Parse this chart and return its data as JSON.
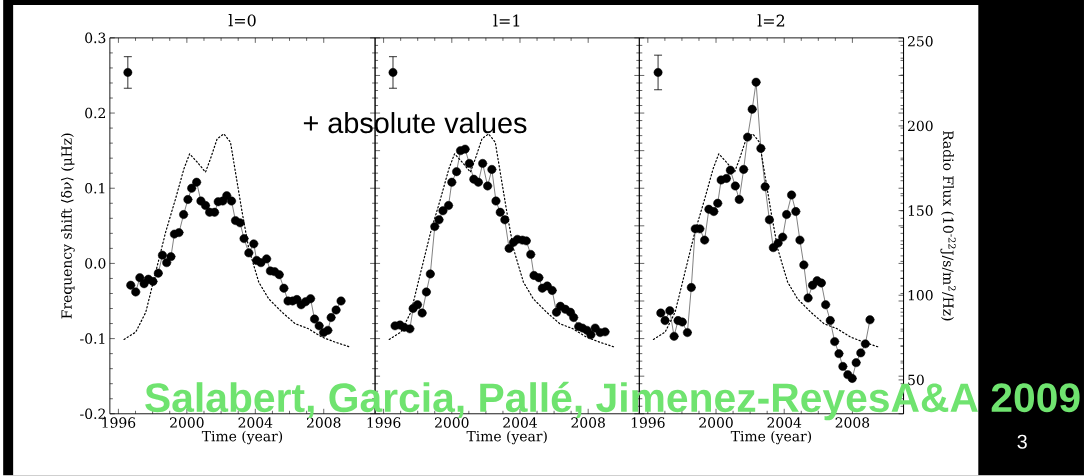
{
  "chart_data": [
    {
      "type": "line",
      "title": "l=0",
      "xlabel": "Time (year)",
      "ylabel": "Frequency shift ⟨δν⟩ (μHz)",
      "xlim": [
        1995.5,
        2011
      ],
      "xticks": [
        1996,
        2000,
        2004,
        2008
      ],
      "ylim": [
        -0.2,
        0.3
      ],
      "yticks": [
        -0.2,
        -0.1,
        {
          "value": 0,
          "label": "0.0"
        },
        0.1,
        0.2,
        0.3
      ],
      "y2lim": [
        30,
        252
      ],
      "tick_labels": [
        "x",
        "y"
      ],
      "annotations": [
        "+ absolute values",
        "Salabert, Garcia, Pallé, Jimenez-ReyesA&A 2009",
        "3"
      ],
      "series": [
        {
          "type": "line",
          "marker": "circle",
          "color": "#000000",
          "x": [
            1996.72,
            1997.01,
            1997.25,
            1997.5,
            1997.75,
            1998.02,
            1998.33,
            1998.57,
            1998.82,
            1999.07,
            1999.27,
            1999.54,
            1999.81,
            2000.06,
            2000.28,
            2000.57,
            2000.82,
            2001.09,
            2001.33,
            2001.62,
            2001.83,
            2002.1,
            2002.33,
            2002.61,
            2002.84,
            2003.11,
            2003.34,
            2003.62,
            2003.91,
            2004.08,
            2004.33,
            2004.66,
            2004.88,
            2005.13,
            2005.4,
            2005.67,
            2005.91,
            2006.18,
            2006.43,
            2006.68,
            2006.94,
            2007.23,
            2007.46,
            2007.73,
            2007.99,
            2008.24,
            2008.43,
            2008.72,
            2009.01
          ],
          "values": [
            -0.029,
            -0.038,
            -0.019,
            -0.027,
            -0.021,
            -0.024,
            -0.013,
            0.011,
            0.001,
            0.009,
            0.039,
            0.041,
            0.065,
            0.085,
            0.1,
            0.108,
            0.083,
            0.077,
            0.068,
            0.068,
            0.082,
            0.083,
            0.09,
            0.083,
            0.057,
            0.054,
            0.033,
            0.014,
            0.026,
            0.004,
            0.001,
            0.006,
            -0.01,
            -0.011,
            -0.015,
            -0.033,
            -0.05,
            -0.05,
            -0.048,
            -0.055,
            -0.051,
            -0.047,
            -0.074,
            -0.083,
            -0.092,
            -0.089,
            -0.072,
            -0.062,
            -0.05
          ]
        },
        {
          "type": "scatter",
          "marker": "circle",
          "color": "#000000",
          "x": [
            1996.55
          ],
          "values": [
            0.254
          ],
          "errors": [
            0.021
          ]
        },
        {
          "type": "line",
          "axis": "y2",
          "marker": "none",
          "line_style": "dotted",
          "color": "#000000",
          "x": [
            1996.33,
            1997.01,
            1997.6,
            1998.18,
            1998.76,
            1999.34,
            1999.83,
            2000.16,
            2000.61,
            2001.09,
            2001.38,
            2001.77,
            2002.16,
            2002.55,
            2002.84,
            2003.23,
            2003.62,
            2004.2,
            2004.78,
            2005.56,
            2006.33,
            2007.11,
            2007.89,
            2008.67,
            2009.54
          ],
          "values": [
            73.9,
            78.2,
            90.0,
            113.7,
            137.3,
            157.0,
            174.7,
            183.5,
            178.6,
            172.7,
            180.6,
            192.4,
            195.3,
            190.4,
            172.7,
            149.1,
            127.4,
            107.8,
            97.9,
            90.0,
            83.2,
            80.2,
            75.3,
            72.3,
            69.4
          ]
        }
      ]
    },
    {
      "type": "line",
      "title": "l=1",
      "xlabel": "Time (year)",
      "xlim": [
        1995.5,
        2011
      ],
      "xticks": [
        1996,
        2000,
        2004,
        2008
      ],
      "ylim": [
        -0.2,
        0.3
      ],
      "y2lim": [
        30,
        252
      ],
      "tick_labels": "x",
      "series": [
        {
          "type": "line",
          "marker": "circle",
          "color": "#000000",
          "x": [
            1996.67,
            1996.96,
            1997.21,
            1997.54,
            1997.73,
            1997.99,
            1998.26,
            1998.51,
            1998.74,
            1999.0,
            1999.25,
            1999.48,
            1999.81,
            2000.0,
            2000.28,
            2000.51,
            2000.78,
            2001.03,
            2001.29,
            2001.56,
            2001.81,
            2002.1,
            2002.35,
            2002.59,
            2002.84,
            2003.11,
            2003.36,
            2003.62,
            2003.85,
            2004.14,
            2004.37,
            2004.63,
            2004.82,
            2005.11,
            2005.31,
            2005.6,
            2005.89,
            2006.14,
            2006.37,
            2006.66,
            2006.96,
            2007.15,
            2007.44,
            2007.67,
            2007.93,
            2008.16,
            2008.41,
            2008.7,
            2008.99
          ],
          "values": [
            -0.083,
            -0.082,
            -0.085,
            -0.087,
            -0.06,
            -0.055,
            -0.066,
            -0.038,
            -0.014,
            0.049,
            0.058,
            0.07,
            0.077,
            0.108,
            0.122,
            0.15,
            0.152,
            0.133,
            0.112,
            0.108,
            0.133,
            0.103,
            0.125,
            0.083,
            0.068,
            0.058,
            0.02,
            0.028,
            0.032,
            0.031,
            0.03,
            0.012,
            -0.016,
            -0.019,
            -0.033,
            -0.03,
            -0.036,
            -0.065,
            -0.057,
            -0.061,
            -0.065,
            -0.072,
            -0.084,
            -0.086,
            -0.089,
            -0.095,
            -0.086,
            -0.092,
            -0.091
          ]
        },
        {
          "type": "scatter",
          "marker": "circle",
          "color": "#000000",
          "x": [
            1996.55
          ],
          "values": [
            0.254
          ],
          "errors": [
            0.021
          ]
        },
        {
          "type": "line",
          "axis": "y2",
          "marker": "none",
          "line_style": "dotted",
          "color": "#000000",
          "x": [
            1996.33,
            1997.01,
            1997.6,
            1998.18,
            1998.76,
            1999.34,
            1999.83,
            2000.16,
            2000.61,
            2001.09,
            2001.38,
            2001.77,
            2002.16,
            2002.55,
            2002.84,
            2003.23,
            2003.62,
            2004.2,
            2004.78,
            2005.56,
            2006.33,
            2007.11,
            2007.89,
            2008.67,
            2009.54
          ],
          "values": [
            73.9,
            78.2,
            90.0,
            113.7,
            137.3,
            157.0,
            174.7,
            183.5,
            178.6,
            172.7,
            180.6,
            192.4,
            195.3,
            190.4,
            172.7,
            149.1,
            127.4,
            107.8,
            97.9,
            90.0,
            83.2,
            80.2,
            75.3,
            72.3,
            69.4
          ]
        }
      ]
    },
    {
      "type": "line",
      "title": "l=2",
      "xlabel": "Time (year)",
      "y2label": "Radio Flux (10$^{-22}$J/s/m$^{2}$/Hz)",
      "xlim": [
        1995.5,
        2011
      ],
      "xticks": [
        1996,
        2000,
        2004,
        2008
      ],
      "ylim": [
        -0.2,
        0.3
      ],
      "y2lim": [
        30,
        252
      ],
      "y2ticks": [
        50,
        100,
        150,
        200,
        250
      ],
      "tick_labels": [
        "x",
        "y2"
      ],
      "series": [
        {
          "type": "line",
          "marker": "circle",
          "color": "#000000",
          "x": [
            1996.76,
            1997.01,
            1997.29,
            1997.54,
            1997.77,
            1998.02,
            1998.32,
            1998.55,
            1998.78,
            1999.05,
            1999.33,
            1999.58,
            1999.87,
            2000.1,
            2000.3,
            2000.61,
            2000.84,
            2001.13,
            2001.36,
            2001.62,
            2001.85,
            2002.12,
            2002.35,
            2002.63,
            2002.88,
            2003.13,
            2003.36,
            2003.64,
            2003.91,
            2004.14,
            2004.43,
            2004.68,
            2004.92,
            2005.15,
            2005.4,
            2005.66,
            2005.93,
            2006.18,
            2006.43,
            2006.7,
            2006.96,
            2007.21,
            2007.44,
            2007.73,
            2007.99,
            2008.22,
            2008.49,
            2008.76,
            2009.03
          ],
          "values": [
            -0.066,
            -0.076,
            -0.063,
            -0.097,
            -0.076,
            -0.078,
            -0.092,
            -0.032,
            0.046,
            0.046,
            0.031,
            0.072,
            0.069,
            0.08,
            0.111,
            0.113,
            0.124,
            0.103,
            0.085,
            0.125,
            0.168,
            0.205,
            0.241,
            0.153,
            0.102,
            0.058,
            0.021,
            0.027,
            0.035,
            0.065,
            0.091,
            0.069,
            0.031,
            -0.002,
            -0.046,
            -0.029,
            -0.023,
            -0.026,
            -0.055,
            -0.076,
            -0.104,
            -0.12,
            -0.137,
            -0.148,
            -0.153,
            -0.132,
            -0.119,
            -0.107,
            -0.075
          ]
        },
        {
          "type": "scatter",
          "marker": "circle",
          "color": "#000000",
          "x": [
            1996.6
          ],
          "values": [
            0.254
          ],
          "errors": [
            0.023
          ]
        },
        {
          "type": "line",
          "axis": "y2",
          "marker": "none",
          "line_style": "dotted",
          "color": "#000000",
          "x": [
            1996.33,
            1997.01,
            1997.6,
            1998.18,
            1998.76,
            1999.34,
            1999.83,
            2000.16,
            2000.61,
            2001.09,
            2001.38,
            2001.77,
            2002.16,
            2002.55,
            2002.84,
            2003.23,
            2003.62,
            2004.2,
            2004.78,
            2005.56,
            2006.33,
            2007.11,
            2007.89,
            2008.67,
            2009.54
          ],
          "values": [
            73.9,
            78.2,
            90.0,
            113.7,
            137.3,
            157.0,
            174.7,
            183.5,
            178.6,
            172.7,
            180.6,
            192.4,
            195.3,
            190.4,
            172.7,
            149.1,
            127.4,
            107.8,
            97.9,
            90.0,
            83.2,
            80.2,
            75.3,
            72.3,
            69.4
          ]
        }
      ]
    }
  ]
}
